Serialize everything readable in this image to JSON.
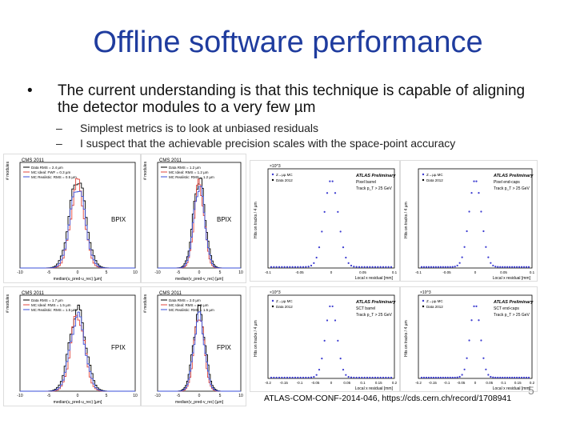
{
  "slide": {
    "title": "Offline software performance",
    "bullet": "The current understanding is that this technique is capable of aligning the detector modules to a very few µm",
    "sub1": "Simplest metrics is to look at unbiased residuals",
    "sub2": "I suspect that the achievable precision scales with the space-point accuracy",
    "footer": "ATLAS-COM-CONF-2014-046, https://cds.cern.ch/record/1708941",
    "page_number": "5"
  },
  "cms_plots": [
    {
      "header": "CMS 2011",
      "label": "BPIX",
      "legend": [
        "Data RMS = 2.4 µm",
        "MC Ideal: FWF = 0.3 µm",
        "MC Realistic: RMS = 0.5 µm"
      ],
      "xaxis": "median(u_pred-u_rec) [µm]",
      "yaxis": "# modules",
      "ticks": [
        "-10",
        "-5",
        "0",
        "5",
        "10"
      ]
    },
    {
      "header": "CMS 2011",
      "label": "BPIX",
      "legend": [
        "Data RMS = 1.2 µm",
        "MC Ideal: RMS = 1.2 µm",
        "MC Realistic: RMS = 1.2 µm"
      ],
      "xaxis": "median(v_pred-v_rec) [µm]",
      "yaxis": "# modules",
      "ticks": [
        "-10",
        "-5",
        "0",
        "5",
        "10"
      ]
    },
    {
      "header": "CMS 2011",
      "label": "FPIX",
      "legend": [
        "Data RMS = 1.7 µm",
        "MC Ideal: RMS = 1.5 µm",
        "MC Realistic: RMS = 1.5 µm"
      ],
      "xaxis": "median(u_pred-u_rec) [µm]",
      "yaxis": "# modules",
      "ticks": [
        "-10",
        "-5",
        "0",
        "5",
        "10"
      ]
    },
    {
      "header": "CMS 2011",
      "label": "FPIX",
      "legend": [
        "Data RMS = 2.0 µm",
        "MC Ideal: RMS = 1.5 µm",
        "MC Realistic: RMS = 1.5 µm"
      ],
      "xaxis": "median(v_pred-v_rec) [µm]",
      "yaxis": "# modules",
      "ticks": [
        "-10",
        "-5",
        "0",
        "5",
        "10"
      ]
    }
  ],
  "atlas_plots": [
    {
      "exp": "ATLAS Preliminary",
      "region": "Pixel barrel",
      "track": "Track p_T > 25 GeV",
      "legend": [
        "Z→µµ MC",
        "Data 2012"
      ],
      "xaxis": "Local x residual [mm]",
      "yaxis": "Hits on tracks / 4 µm",
      "scale": "×10^3",
      "ticks": [
        "-0.1",
        "-0.05",
        "0",
        "0.05",
        "0.1"
      ]
    },
    {
      "exp": "ATLAS Preliminary",
      "region": "Pixel end-caps",
      "track": "Track p_T > 25 GeV",
      "legend": [
        "Z→µµ MC",
        "Data 2012"
      ],
      "xaxis": "Local x residual [mm]",
      "yaxis": "Hits on tracks / 4 µm",
      "scale": "",
      "ticks": [
        "-0.1",
        "-0.05",
        "0",
        "0.05",
        "0.1"
      ]
    },
    {
      "exp": "ATLAS Preliminary",
      "region": "SCT barrel",
      "track": "Track p_T > 25 GeV",
      "legend": [
        "Z→µµ MC",
        "Data 2012"
      ],
      "xaxis": "Local x residual [mm]",
      "yaxis": "Hits on tracks / 4 µm",
      "scale": "×10^3",
      "ticks": [
        "-0.2",
        "-0.15",
        "-0.1",
        "-0.05",
        "0",
        "0.05",
        "0.1",
        "0.15",
        "0.2"
      ]
    },
    {
      "exp": "ATLAS Preliminary",
      "region": "SCT end-caps",
      "track": "Track p_T > 25 GeV",
      "legend": [
        "Z→µµ MC",
        "Data 2012"
      ],
      "xaxis": "Local x residual [mm]",
      "yaxis": "Hits on tracks / 4 µm",
      "scale": "×10^3",
      "ticks": [
        "-0.2",
        "-0.15",
        "-0.1",
        "-0.05",
        "0",
        "0.05",
        "0.1",
        "0.15",
        "0.2"
      ]
    }
  ],
  "colors": {
    "title": "#1f3c9e",
    "data": "#000000",
    "mc_ideal": "#e0443c",
    "mc_real": "#3a4fd8",
    "atlas_points": "#3a3ad0"
  }
}
